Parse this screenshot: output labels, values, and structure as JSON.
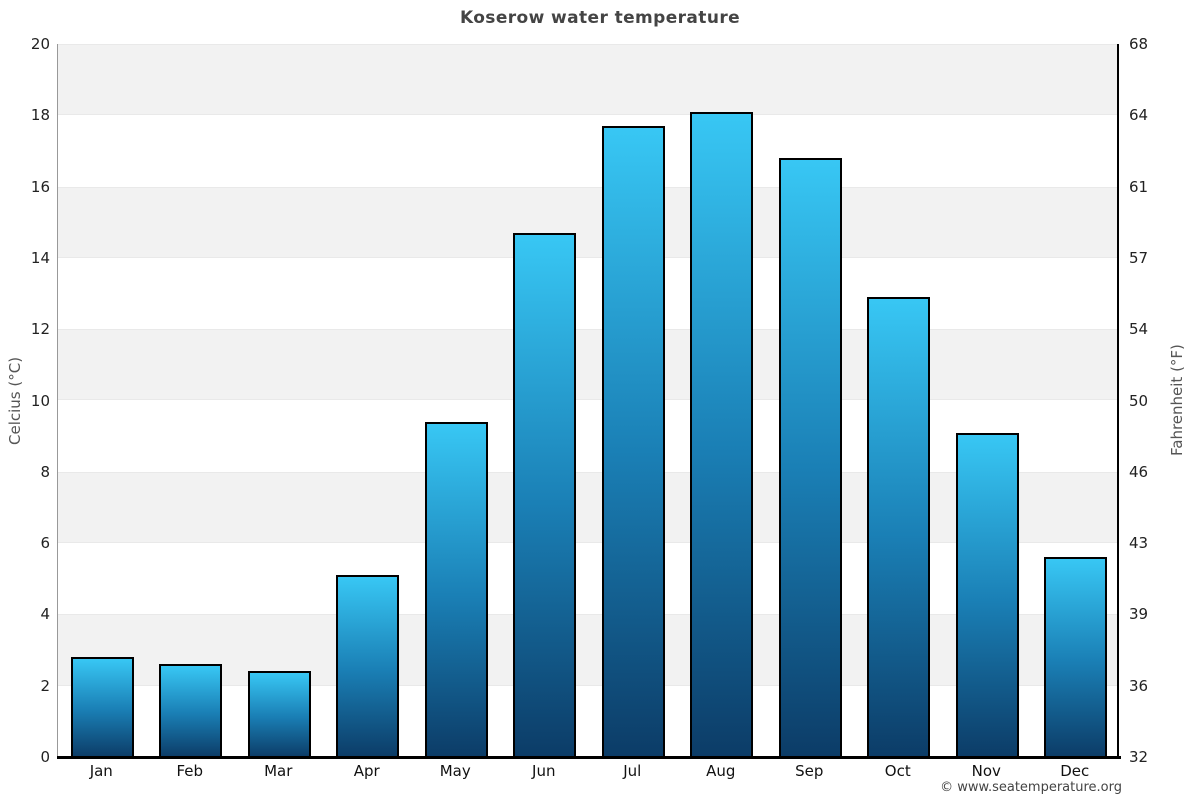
{
  "title": "Koserow water temperature",
  "copyright": "© www.seatemperature.org",
  "chart_data": {
    "type": "bar",
    "title": "Koserow water temperature",
    "categories": [
      "Jan",
      "Feb",
      "Mar",
      "Apr",
      "May",
      "Jun",
      "Jul",
      "Aug",
      "Sep",
      "Oct",
      "Nov",
      "Dec"
    ],
    "values": [
      2.8,
      2.6,
      2.4,
      5.1,
      9.4,
      14.7,
      17.7,
      18.1,
      16.8,
      12.9,
      9.1,
      5.6
    ],
    "unit": "°C",
    "ylabel_left": "Celcius (°C)",
    "ylabel_right": "Fahrenheit (°F)",
    "ylim": [
      0,
      20
    ],
    "left_ticks": [
      "20",
      "18",
      "16",
      "14",
      "12",
      "10",
      "8",
      "6",
      "4",
      "2",
      "0"
    ],
    "right_ticks": [
      "68",
      "64",
      "61",
      "57",
      "54",
      "50",
      "46",
      "43",
      "39",
      "36",
      "32"
    ],
    "tick_step_celsius": 2,
    "grid": "alternating-bands",
    "band_color": "#f2f2f2",
    "bar_gradient_top": "#38c7f4",
    "bar_gradient_bottom": "#0c3c67",
    "bar_border_color": "#000000",
    "legend": "none"
  }
}
